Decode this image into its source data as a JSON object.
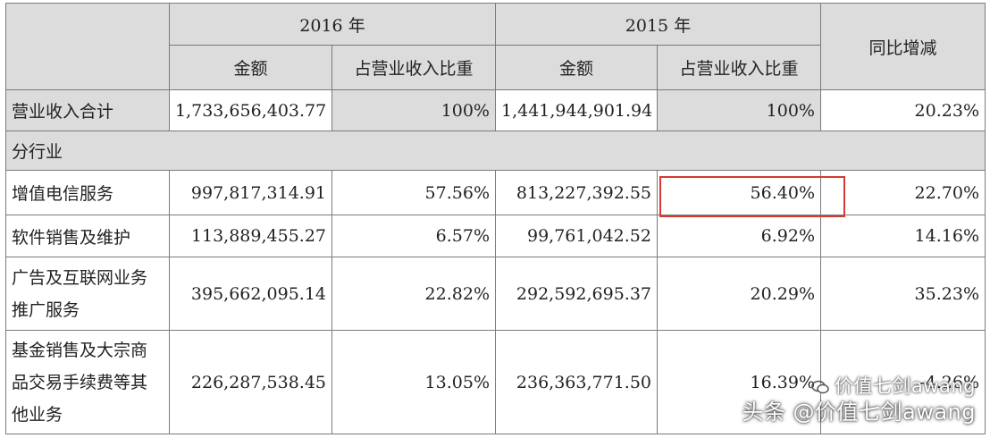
{
  "table": {
    "year_2016": "2016 年",
    "year_2015": "2015 年",
    "amount_label": "金额",
    "share_label": "占营业收入比重",
    "yoy_label": "同比增减",
    "rows": [
      {
        "label": "营业收入合计",
        "a2016": "1,733,656,403.77",
        "s2016": "100%",
        "a2015": "1,441,944,901.94",
        "s2015": "100%",
        "yoy": "20.23%"
      },
      {
        "label": "分行业"
      },
      {
        "label": "增值电信服务",
        "a2016": "997,817,314.91",
        "s2016": "57.56%",
        "a2015": "813,227,392.55",
        "s2015": "56.40%",
        "yoy": "22.70%"
      },
      {
        "label": "软件销售及维护",
        "a2016": "113,889,455.27",
        "s2016": "6.57%",
        "a2015": "99,761,042.52",
        "s2015": "6.92%",
        "yoy": "14.16%"
      },
      {
        "label": "广告及互联网业务推广服务",
        "a2016": "395,662,095.14",
        "s2016": "22.82%",
        "a2015": "292,592,695.37",
        "s2015": "20.29%",
        "yoy": "35.23%"
      },
      {
        "label": "基金销售及大宗商品交易手续费等其他业务",
        "a2016": "226,287,538.45",
        "s2016": "13.05%",
        "a2015": "236,363,771.50",
        "s2015": "16.39%",
        "yoy": "-4.26%"
      }
    ]
  },
  "watermark": {
    "line1": "价值七剑awang",
    "line2": "头条 @价值七剑awang"
  }
}
